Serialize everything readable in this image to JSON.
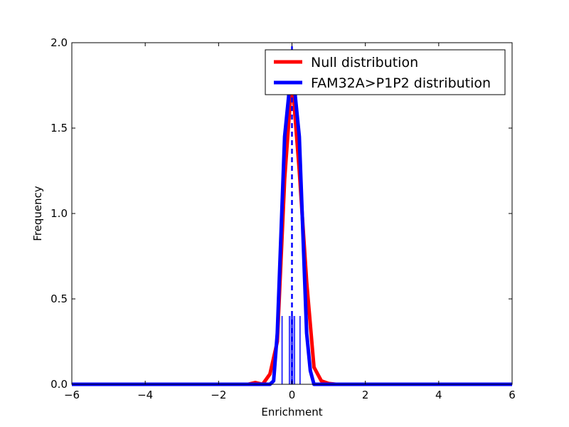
{
  "chart_data": {
    "type": "line",
    "title": "",
    "xlabel": "Enrichment",
    "ylabel": "Frequency",
    "xlim": [
      -6,
      6
    ],
    "ylim": [
      0,
      2.0
    ],
    "grid": false,
    "legend_position": "top-right",
    "x_ticks": [
      -6,
      -4,
      -2,
      0,
      2,
      4,
      6
    ],
    "x_tick_labels": [
      "−6",
      "−4",
      "−2",
      "0",
      "2",
      "4",
      "6"
    ],
    "y_ticks": [
      0,
      0.5,
      1.0,
      1.5,
      2.0
    ],
    "y_tick_labels": [
      "0.0",
      "0.5",
      "1.0",
      "1.5",
      "2.0"
    ],
    "series": [
      {
        "name": "Null distribution",
        "color": "#ff0000",
        "style": "solid",
        "x": [
          -6,
          -1.2,
          -1.0,
          -0.8,
          -0.6,
          -0.4,
          -0.2,
          0.0,
          0.2,
          0.4,
          0.6,
          0.8,
          1.0,
          1.2,
          6
        ],
        "y": [
          0.0,
          0.0,
          0.01,
          0.0,
          0.06,
          0.25,
          1.2,
          1.8,
          1.25,
          0.6,
          0.1,
          0.02,
          0.005,
          0.0,
          0.0
        ]
      },
      {
        "name": "FAM32A>P1P2 distribution",
        "color": "#0000ff",
        "style": "solid",
        "x": [
          -6,
          -0.6,
          -0.5,
          -0.4,
          -0.2,
          0.0,
          0.2,
          0.4,
          0.5,
          0.6,
          6
        ],
        "y": [
          0.0,
          0.0,
          0.02,
          0.3,
          1.45,
          1.88,
          1.45,
          0.3,
          0.08,
          0.0,
          0.0
        ]
      }
    ],
    "reference_line": {
      "x": 0.0,
      "y_top": 2.0,
      "color": "#0000ff",
      "style": "dashed"
    },
    "rug": {
      "color": "#0000ff",
      "height": 0.4,
      "x": [
        -0.27,
        -0.07,
        -0.02,
        0.02,
        0.07,
        0.22
      ]
    }
  }
}
